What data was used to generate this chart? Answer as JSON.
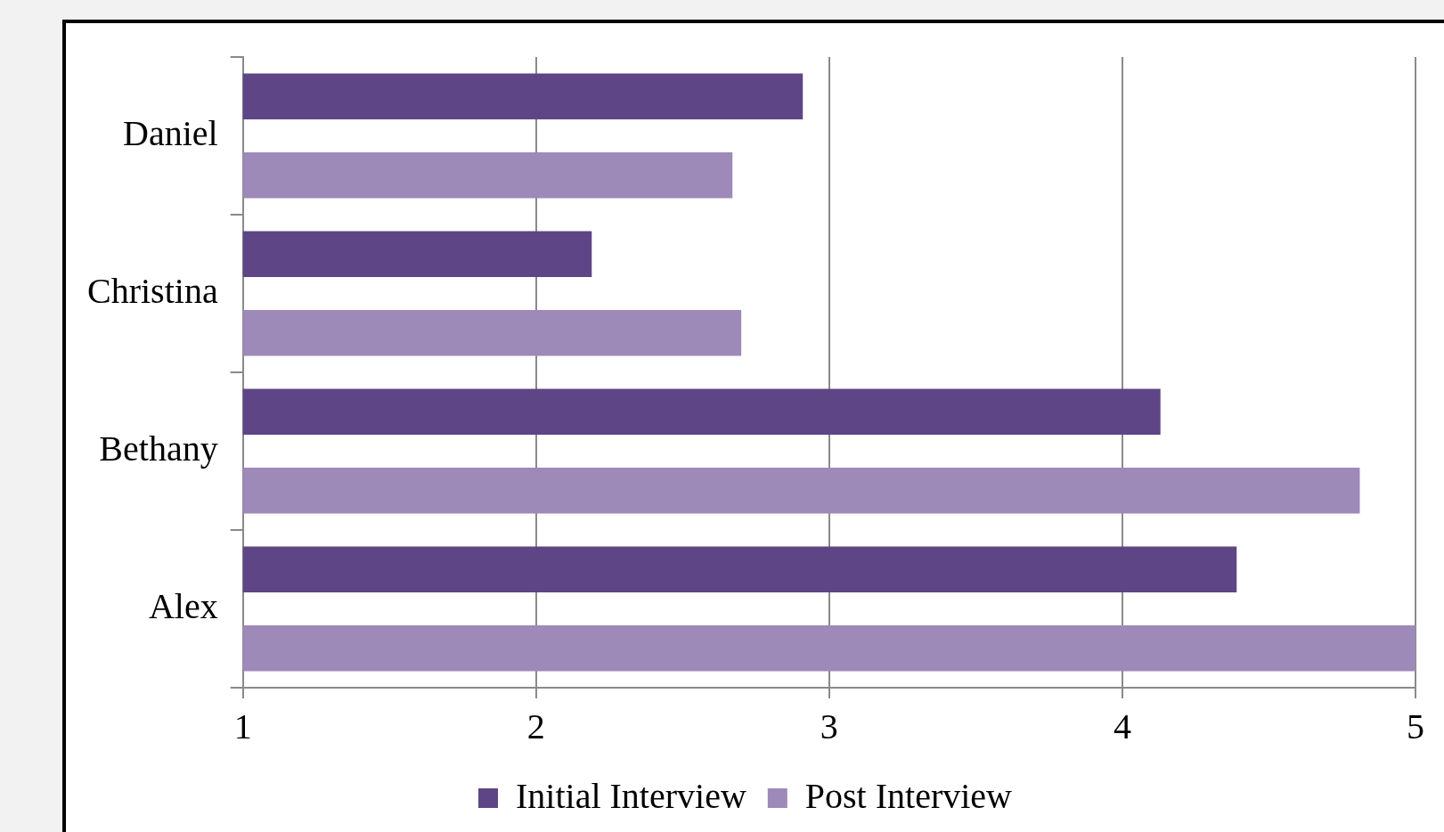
{
  "chart_data": {
    "type": "bar",
    "orientation": "horizontal",
    "categories": [
      "Daniel",
      "Christina",
      "Bethany",
      "Alex"
    ],
    "series": [
      {
        "name": "Initial Interview",
        "color": "#5e4586",
        "values": [
          2.91,
          2.19,
          4.13,
          4.39
        ]
      },
      {
        "name": "Post Interview",
        "color": "#9d8ab8",
        "values": [
          2.67,
          2.7,
          4.81,
          5.0
        ]
      }
    ],
    "xlim": [
      1,
      5
    ],
    "xticks": [
      1,
      2,
      3,
      4,
      5
    ],
    "grid": "x",
    "legend": "bottom"
  }
}
